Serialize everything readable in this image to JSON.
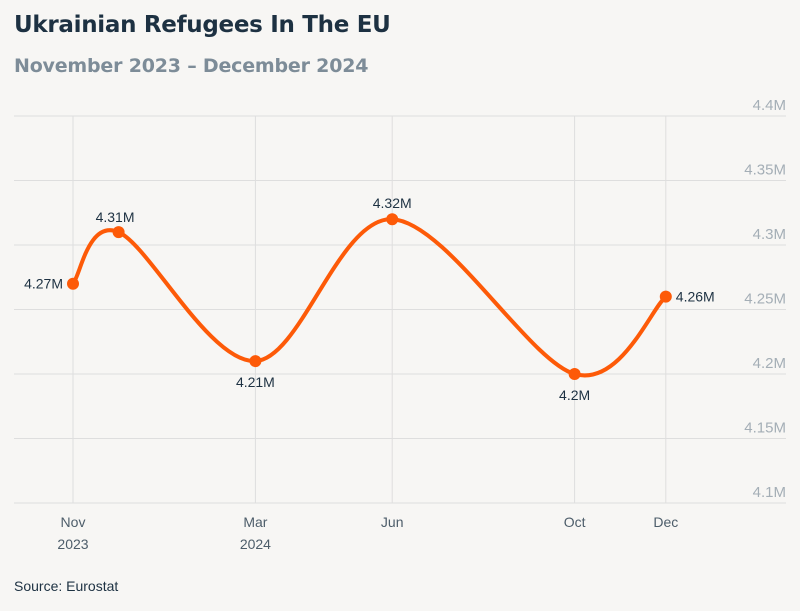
{
  "title": "Ukrainian Refugees In The EU",
  "subtitle": "November 2023 – December 2024",
  "source": "Source: Eurostat",
  "colors": {
    "line": "#fd5a08",
    "grid": "#dedede",
    "title": "#1d3142",
    "subtitle": "#7d8c98",
    "background": "#f7f6f4"
  },
  "chart_data": {
    "type": "line",
    "title": "Ukrainian Refugees In The EU",
    "subtitle": "November 2023 – December 2024",
    "x": [
      "2023-11",
      "2023-12",
      "2024-03",
      "2024-06",
      "2024-10",
      "2024-12"
    ],
    "series": [
      {
        "values": [
          4.27,
          4.31,
          4.21,
          4.32,
          4.2,
          4.26
        ],
        "labels": [
          "4.27M",
          "4.31M",
          "4.21M",
          "4.32M",
          "4.2M",
          "4.26M"
        ],
        "label_positions": [
          "left",
          "right",
          "below",
          "above",
          "below",
          "right"
        ]
      }
    ],
    "ylim": [
      4.1,
      4.4
    ],
    "y_ticks": [
      4.1,
      4.15,
      4.2,
      4.25,
      4.3,
      4.35,
      4.4
    ],
    "y_tick_labels": [
      "4.1M",
      "4.15M",
      "4.2M",
      "4.25M",
      "4.3M",
      "4.35M",
      "4.4M"
    ],
    "y_axis_side": "right",
    "x_ticks": [
      {
        "x": "2023-11",
        "line1": "Nov",
        "line2": "2023"
      },
      {
        "x": "2024-03",
        "line1": "Mar",
        "line2": "2024"
      },
      {
        "x": "2024-06",
        "line1": "Jun",
        "line2": ""
      },
      {
        "x": "2024-10",
        "line1": "Oct",
        "line2": ""
      },
      {
        "x": "2024-12",
        "line1": "Dec",
        "line2": ""
      }
    ],
    "grid": true,
    "smooth": true,
    "legend": false
  }
}
